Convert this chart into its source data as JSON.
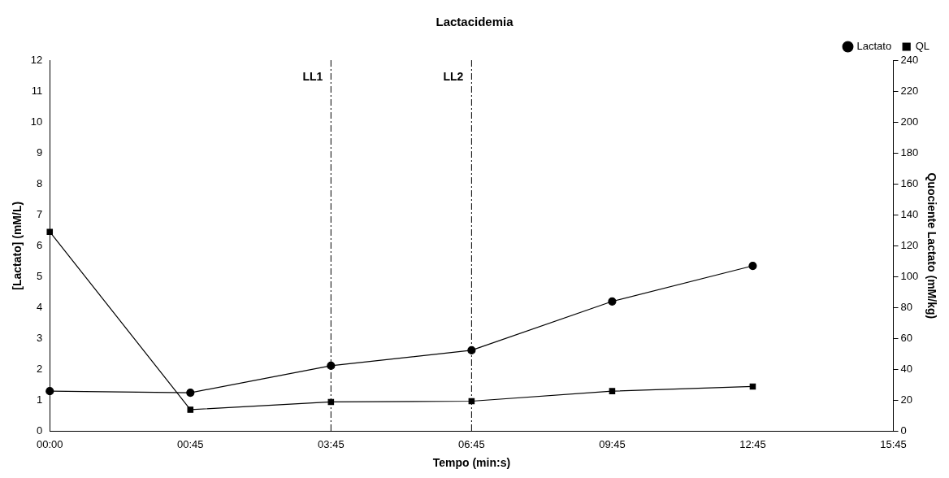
{
  "chart_data": {
    "type": "line",
    "title": "Lactacidemia",
    "xlabel": "Tempo (min:s)",
    "ylabel": "[Lactato] (mM/L)",
    "y2label": "Quociente Lactato (mM/kg)",
    "categories": [
      "00:00",
      "00:45",
      "03:45",
      "06:45",
      "09:45",
      "12:45",
      "15:45"
    ],
    "series": [
      {
        "name": "Lactato",
        "color": "#000000",
        "marker": "circle",
        "values": [
          1.3,
          1.25,
          2.12,
          2.62,
          4.2,
          5.35,
          null
        ]
      },
      {
        "name": "QL",
        "color": "#000000",
        "marker": "square",
        "axis": "y2",
        "values": [
          129,
          14,
          19,
          19.5,
          26,
          29,
          null
        ]
      }
    ],
    "ylim": [
      0,
      12
    ],
    "yticks": [
      0,
      1,
      2,
      3,
      4,
      5,
      6,
      7,
      8,
      9,
      10,
      11,
      12
    ],
    "y2lim": [
      0,
      240
    ],
    "y2ticks": [
      0,
      20,
      40,
      60,
      80,
      100,
      120,
      140,
      160,
      180,
      200,
      220,
      240
    ],
    "ref_lines": [
      {
        "axis": "x",
        "value": "03:45",
        "label": "LL1",
        "line_style": "dashdot"
      },
      {
        "axis": "x",
        "value": "06:45",
        "label": "LL2",
        "line_style": "dashdot"
      }
    ],
    "grid": false,
    "legend": "top right",
    "line_style": "solid"
  }
}
